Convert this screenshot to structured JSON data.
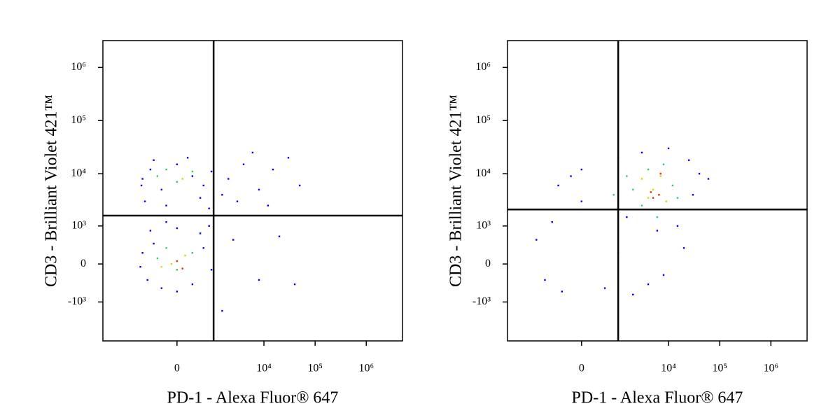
{
  "chart_data": [
    {
      "type": "scatter",
      "scale": "logicle",
      "xlabel": "PD-1 - Alexa Fluor® 647",
      "ylabel": "CD3 - Brilliant Violet 421™",
      "xlim": [
        -5600,
        5100000
      ],
      "ylim": [
        -5600,
        3200000
      ],
      "xticks": [
        0,
        {
          "value": 10000,
          "label": "10⁴"
        },
        {
          "value": 100000,
          "label": "10⁵"
        },
        {
          "value": 1000000,
          "label": "10⁶"
        }
      ],
      "yticks": [
        {
          "value": -1000,
          "label": "-10³"
        },
        0,
        {
          "value": 1000,
          "label": "10³"
        },
        {
          "value": 10000,
          "label": "10⁴"
        },
        {
          "value": 100000,
          "label": "10⁵"
        },
        {
          "value": 1000000,
          "label": "10⁶"
        }
      ],
      "gate": {
        "x": 1000,
        "y": 1600
      },
      "series": [
        {
          "color": "#0000ff",
          "x": [
            -900,
            -600,
            -300,
            0,
            300,
            600,
            900,
            -800,
            -200,
            500,
            800,
            -500,
            200,
            -950,
            -900,
            -700,
            -500,
            -300,
            0,
            300,
            600,
            900,
            -600,
            0,
            500,
            -200,
            800,
            -1000,
            2000,
            4000,
            8000,
            15000,
            30000,
            3000,
            6000,
            12000,
            50000,
            1500,
            2500,
            8000,
            20000,
            40000,
            1500
          ],
          "values": [
            8000,
            12000,
            5000,
            15000,
            9000,
            6000,
            11000,
            3000,
            2500,
            3500,
            2200,
            18000,
            20000,
            6000,
            200,
            -300,
            400,
            -500,
            -600,
            -400,
            300,
            -100,
            800,
            900,
            700,
            1200,
            1000,
            -50,
            8000,
            15000,
            5000,
            12000,
            20000,
            3000,
            25000,
            2500,
            6000,
            4000,
            500,
            -300,
            600,
            -400,
            -1500
          ]
        },
        {
          "color": "#33cc66",
          "x": [
            -400,
            0,
            300,
            -200,
            -400,
            0,
            300,
            -200
          ],
          "values": [
            9000,
            7000,
            11000,
            12000,
            100,
            -100,
            200,
            300
          ]
        },
        {
          "color": "#e0d000",
          "x": [
            -100,
            150,
            -300,
            100
          ],
          "values": [
            0,
            150,
            -50,
            8000
          ]
        },
        {
          "color": "#e03000",
          "x": [
            0,
            100
          ],
          "values": [
            50,
            -80
          ]
        }
      ]
    },
    {
      "type": "scatter",
      "scale": "logicle",
      "xlabel": "PD-1 - Alexa Fluor® 647",
      "ylabel": "CD3 - Brilliant Violet 421™",
      "xlim": [
        -5600,
        5100000
      ],
      "ylim": [
        -5600,
        3200000
      ],
      "xticks": [
        0,
        {
          "value": 10000,
          "label": "10⁴"
        },
        {
          "value": 100000,
          "label": "10⁵"
        },
        {
          "value": 1000000,
          "label": "10⁶"
        }
      ],
      "yticks": [
        {
          "value": -1000,
          "label": "-10³"
        },
        0,
        {
          "value": 1000,
          "label": "10³"
        },
        {
          "value": 10000,
          "label": "10⁴"
        },
        {
          "value": 100000,
          "label": "10⁵"
        },
        {
          "value": 1000000,
          "label": "10⁶"
        }
      ],
      "gate": {
        "x": 1000,
        "y": 2100
      },
      "series": [
        {
          "color": "#0000ff",
          "x": [
            -1500,
            -1000,
            -700,
            -400,
            0,
            -500,
            0,
            500,
            1000,
            2000,
            4000,
            8000,
            15000,
            30000,
            40000,
            25000,
            10000,
            3000,
            1000,
            -200,
            60000,
            1500,
            20000,
            6000
          ],
          "values": [
            500,
            -300,
            1200,
            -600,
            3000,
            6000,
            12000,
            -500,
            200,
            -700,
            -400,
            -200,
            1000,
            4000,
            10000,
            18000,
            30000,
            25000,
            20000,
            9000,
            8000,
            1500,
            300,
            800
          ]
        },
        {
          "color": "#33cc66",
          "x": [
            2000,
            4000,
            8000,
            12000,
            1500,
            3000,
            15000,
            6000,
            800
          ],
          "values": [
            5000,
            12000,
            15000,
            6000,
            9000,
            2500,
            3500,
            1500,
            4000
          ]
        },
        {
          "color": "#e0d000",
          "x": [
            3000,
            5000,
            7000,
            4000,
            9000
          ],
          "values": [
            8000,
            5000,
            9000,
            3500,
            3000
          ]
        },
        {
          "color": "#e03000",
          "x": [
            5000,
            6500,
            4500,
            7000
          ],
          "values": [
            3500,
            4000,
            4500,
            10000
          ]
        }
      ]
    }
  ]
}
